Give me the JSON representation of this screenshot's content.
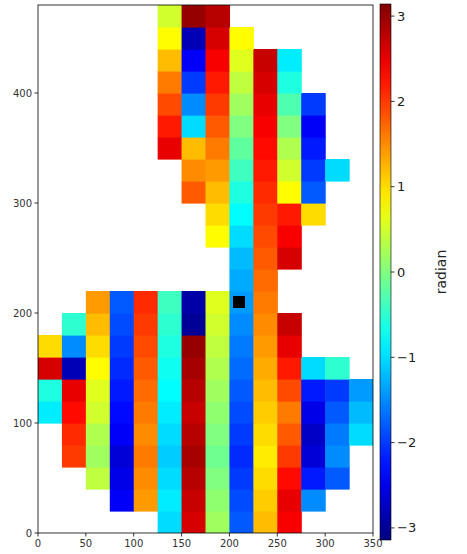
{
  "chart_data": {
    "type": "heatmap",
    "xlim": [
      0,
      350
    ],
    "ylim": [
      0,
      480
    ],
    "xticks": [
      0,
      50,
      100,
      150,
      200,
      250,
      300,
      350
    ],
    "yticks": [
      0,
      100,
      200,
      300,
      400
    ],
    "xbins": [
      0,
      25,
      50,
      75,
      100,
      125,
      150,
      175,
      200,
      225,
      250,
      275,
      300,
      325,
      350
    ],
    "ybins": [
      0,
      20,
      40,
      60,
      80,
      100,
      120,
      140,
      160,
      180,
      200,
      220,
      240,
      260,
      280,
      300,
      320,
      340,
      360,
      380,
      400,
      420,
      440,
      460,
      480
    ],
    "cells": [
      [
        null,
        null,
        null,
        null,
        null,
        -1.0,
        2.6,
        0.2,
        -1.8,
        1.2,
        2.4,
        null,
        null,
        null
      ],
      [
        null,
        null,
        null,
        -2.4,
        1.4,
        -0.9,
        2.7,
        0.1,
        -1.9,
        1.1,
        2.5,
        -1.5,
        null,
        null
      ],
      [
        null,
        null,
        0.4,
        -2.5,
        1.5,
        -1.0,
        2.8,
        0.0,
        -2.0,
        1.0,
        2.3,
        -2.2,
        -1.8,
        null
      ],
      [
        null,
        2.0,
        0.2,
        -2.6,
        1.6,
        -1.1,
        2.9,
        -0.1,
        -2.1,
        0.9,
        2.0,
        -2.6,
        -1.5,
        null
      ],
      [
        null,
        2.1,
        0.3,
        -2.4,
        1.5,
        -1.0,
        2.8,
        0.0,
        -2.0,
        1.0,
        1.8,
        -2.7,
        -1.6,
        -1.0
      ],
      [
        -0.9,
        2.3,
        0.5,
        -2.3,
        1.6,
        -0.9,
        2.7,
        0.1,
        -1.9,
        1.1,
        1.6,
        -2.5,
        -1.8,
        -1.2
      ],
      [
        -0.6,
        2.5,
        0.6,
        -2.2,
        1.7,
        -0.8,
        2.8,
        0.2,
        -1.8,
        1.2,
        1.9,
        -2.2,
        -2.0,
        -1.4
      ],
      [
        2.6,
        -2.8,
        0.8,
        -2.1,
        1.8,
        -0.7,
        2.9,
        0.3,
        -1.7,
        1.3,
        2.2,
        -1.0,
        -0.5,
        null
      ],
      [
        1.0,
        -1.5,
        1.0,
        -2.0,
        1.9,
        -0.6,
        3.0,
        0.4,
        -1.6,
        1.4,
        2.5,
        null,
        null,
        null
      ],
      [
        null,
        -0.5,
        1.2,
        -1.9,
        2.0,
        -0.5,
        -3.0,
        0.5,
        -1.5,
        1.5,
        2.7,
        null,
        null,
        null
      ],
      [
        null,
        null,
        1.4,
        -1.8,
        2.1,
        -0.4,
        -2.9,
        0.6,
        -1.4,
        1.6,
        null,
        null,
        null,
        null
      ],
      [
        null,
        null,
        null,
        null,
        null,
        null,
        null,
        null,
        -1.3,
        1.7,
        null,
        null,
        null,
        null
      ],
      [
        null,
        null,
        null,
        null,
        null,
        null,
        null,
        null,
        -1.2,
        1.8,
        2.6,
        null,
        null,
        null
      ],
      [
        null,
        null,
        null,
        null,
        null,
        null,
        null,
        0.8,
        -1.0,
        1.9,
        2.4,
        null,
        null,
        null
      ],
      [
        null,
        null,
        null,
        null,
        null,
        null,
        null,
        1.0,
        -0.8,
        2.0,
        2.2,
        1.0,
        null,
        null
      ],
      [
        null,
        null,
        null,
        null,
        null,
        null,
        1.8,
        1.2,
        -0.6,
        2.1,
        0.8,
        -1.8,
        null,
        null
      ],
      [
        null,
        null,
        null,
        null,
        null,
        null,
        1.5,
        1.4,
        -0.4,
        2.2,
        0.5,
        -2.0,
        -1.0,
        null
      ],
      [
        null,
        null,
        null,
        null,
        null,
        2.5,
        1.2,
        1.6,
        -0.2,
        2.3,
        0.3,
        -2.2,
        null,
        null
      ],
      [
        null,
        null,
        null,
        null,
        null,
        2.2,
        -1.0,
        1.8,
        0.0,
        2.4,
        0.0,
        -2.4,
        null,
        null
      ],
      [
        null,
        null,
        null,
        null,
        null,
        1.9,
        -1.5,
        2.0,
        0.2,
        2.5,
        -0.3,
        -2.0,
        null,
        null
      ],
      [
        null,
        null,
        null,
        null,
        null,
        1.6,
        -2.0,
        2.2,
        0.4,
        2.6,
        -0.6,
        null,
        null,
        null
      ],
      [
        null,
        null,
        null,
        null,
        null,
        1.2,
        -2.4,
        2.4,
        0.6,
        2.7,
        -0.9,
        null,
        null,
        null
      ],
      [
        null,
        null,
        null,
        null,
        null,
        0.8,
        -2.8,
        2.6,
        0.8,
        null,
        null,
        null,
        null,
        null
      ],
      [
        null,
        null,
        null,
        null,
        null,
        0.5,
        3.0,
        2.8,
        null,
        null,
        null,
        null,
        null,
        null
      ]
    ],
    "reference_point": {
      "x": 210,
      "y": 210
    },
    "colorbar_range": [
      -3.14159,
      3.14159
    ],
    "colorbar_ticks": [
      {
        "value": -3,
        "label": "−3"
      },
      {
        "value": -2,
        "label": "−2"
      },
      {
        "value": -1,
        "label": "−1"
      },
      0,
      1,
      2,
      3
    ],
    "colorbar_label": "radian"
  }
}
